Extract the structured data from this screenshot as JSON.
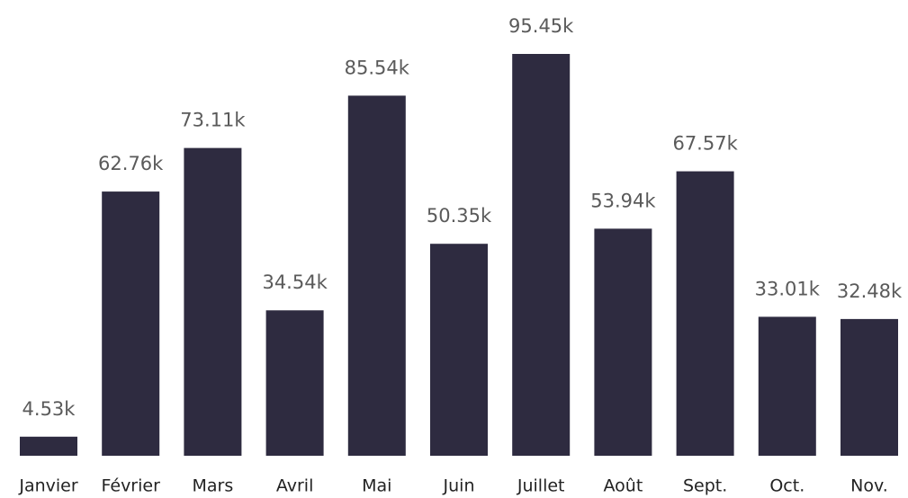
{
  "chart_data": {
    "type": "bar",
    "categories": [
      "Janvier",
      "Février",
      "Mars",
      "Avril",
      "Mai",
      "Juin",
      "Juillet",
      "Août",
      "Sept.",
      "Oct.",
      "Nov."
    ],
    "values": [
      4530,
      62760,
      73110,
      34540,
      85540,
      50350,
      95450,
      53940,
      67570,
      33010,
      32480
    ],
    "value_labels": [
      "4.53k",
      "62.76k",
      "73.11k",
      "34.54k",
      "85.54k",
      "50.35k",
      "95.45k",
      "53.94k",
      "67.57k",
      "33.01k",
      "32.48k"
    ],
    "color": "#2e2b40"
  }
}
